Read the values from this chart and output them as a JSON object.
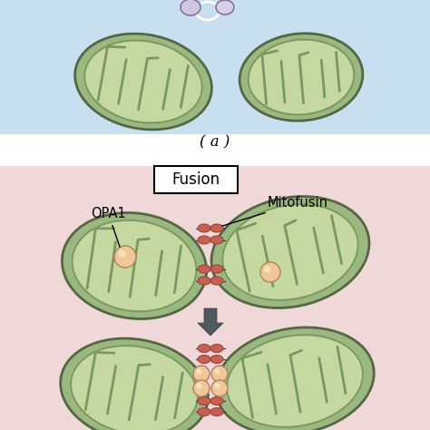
{
  "title_a": "( a )",
  "title_fusion": "Fusion",
  "label_opa1": "OPA1",
  "label_mitofusin": "Mitofusin",
  "bg_top_color": "#c8dff0",
  "bg_bottom_color": "#f0d8d8",
  "mito_outer_color": "#9ab880",
  "mito_inner_color": "#c8d8a8",
  "mito_cristae_color": "#7a9860",
  "mito_bg_color": "#c5d8a0",
  "opa1_color": "#f0c898",
  "mitofusin_color": "#c86050",
  "arrow_color": "#505860",
  "box_bg": "#ffffff",
  "box_edge": "#000000",
  "text_color": "#000000",
  "fig_width": 4.74,
  "fig_height": 4.74
}
